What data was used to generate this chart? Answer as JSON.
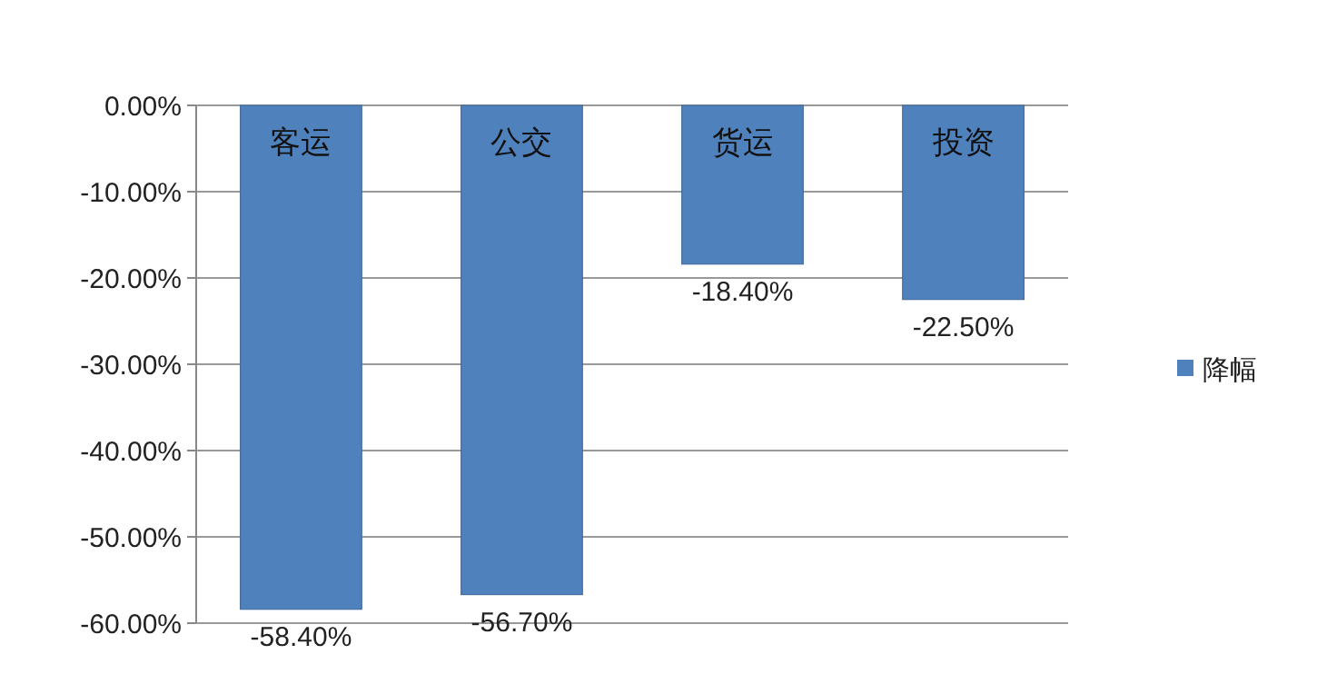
{
  "chart_data": {
    "type": "bar",
    "categories": [
      "客运",
      "公交",
      "货运",
      "投资"
    ],
    "series": [
      {
        "name": "降幅",
        "color": "#4f81bd",
        "values": [
          -58.4,
          -56.7,
          -18.4,
          -22.5
        ],
        "value_labels": [
          "-58.40%",
          "-56.70%",
          "-18.40%",
          "-22.50%"
        ]
      }
    ],
    "ylim": [
      -60,
      0
    ],
    "yticks": [
      {
        "value": 0,
        "label": "0.00%"
      },
      {
        "value": -10,
        "label": "-10.00%"
      },
      {
        "value": -20,
        "label": "-20.00%"
      },
      {
        "value": -30,
        "label": "-30.00%"
      },
      {
        "value": -40,
        "label": "-40.00%"
      },
      {
        "value": -50,
        "label": "-50.00%"
      },
      {
        "value": -60,
        "label": "-60.00%"
      }
    ],
    "grid": "y",
    "legend": "right"
  }
}
